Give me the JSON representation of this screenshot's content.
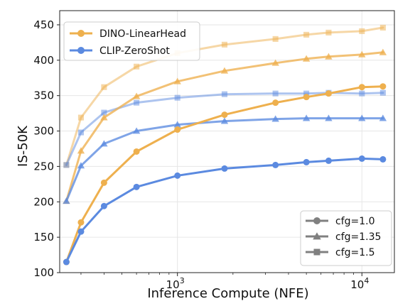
{
  "chart_data": {
    "type": "line",
    "xlabel": "Inference Compute (NFE)",
    "ylabel": "IS-50K",
    "x_scale": "log",
    "xlim": [
      230,
      15000
    ],
    "ylim": [
      100,
      470
    ],
    "x_ticks": [
      {
        "value": 1000,
        "base": "10",
        "exp": "3"
      },
      {
        "value": 10000,
        "base": "10",
        "exp": "4"
      }
    ],
    "y_ticks": [
      100,
      150,
      200,
      250,
      300,
      350,
      400,
      450
    ],
    "grid": true,
    "colors": {
      "dino": "#eeb04e",
      "clip": "#5b8ae0"
    },
    "series": [
      {
        "name": "DINO-LinearHead",
        "color_key": "dino",
        "cfg": "1.0",
        "opacity": 1.0,
        "marker": "circle",
        "x": [
          250,
          300,
          400,
          600,
          1000,
          1800,
          3400,
          5000,
          6600,
          10000,
          13000
        ],
        "y": [
          115,
          171,
          227,
          271,
          302,
          323,
          340,
          348,
          353,
          362,
          363
        ]
      },
      {
        "name": "DINO-LinearHead",
        "color_key": "dino",
        "cfg": "1.35",
        "opacity": 0.78,
        "marker": "triangle",
        "x": [
          250,
          300,
          400,
          600,
          1000,
          1800,
          3400,
          5000,
          6600,
          10000,
          13000
        ],
        "y": [
          201,
          272,
          319,
          349,
          370,
          385,
          396,
          402,
          405,
          408,
          411
        ]
      },
      {
        "name": "DINO-LinearHead",
        "color_key": "dino",
        "cfg": "1.5",
        "opacity": 0.5,
        "marker": "square",
        "x": [
          250,
          300,
          400,
          600,
          1000,
          1800,
          3400,
          5000,
          6600,
          10000,
          13000
        ],
        "y": [
          252,
          319,
          362,
          391,
          410,
          422,
          430,
          436,
          439,
          441,
          446
        ]
      },
      {
        "name": "CLIP-ZeroShot",
        "color_key": "clip",
        "cfg": "1.0",
        "opacity": 1.0,
        "marker": "circle",
        "x": [
          250,
          300,
          400,
          600,
          1000,
          1800,
          3400,
          5000,
          6600,
          10000,
          13000
        ],
        "y": [
          115,
          158,
          194,
          221,
          237,
          247,
          252,
          256,
          258,
          261,
          260
        ]
      },
      {
        "name": "CLIP-ZeroShot",
        "color_key": "clip",
        "cfg": "1.35",
        "opacity": 0.78,
        "marker": "triangle",
        "x": [
          250,
          300,
          400,
          600,
          1000,
          1800,
          3400,
          5000,
          6600,
          10000,
          13000
        ],
        "y": [
          201,
          251,
          282,
          300,
          309,
          314,
          317,
          318,
          318,
          318,
          318
        ]
      },
      {
        "name": "CLIP-ZeroShot",
        "color_key": "clip",
        "cfg": "1.5",
        "opacity": 0.5,
        "marker": "square",
        "x": [
          250,
          300,
          400,
          600,
          1000,
          1800,
          3400,
          5000,
          6600,
          10000,
          13000
        ],
        "y": [
          252,
          298,
          326,
          340,
          347,
          352,
          353,
          353,
          354,
          353,
          354
        ]
      }
    ],
    "legend_model": {
      "placement": "top-left",
      "entries": [
        {
          "label": "DINO-LinearHead",
          "color_key": "dino"
        },
        {
          "label": "CLIP-ZeroShot",
          "color_key": "clip"
        }
      ]
    },
    "legend_cfg": {
      "placement": "bottom-right",
      "entries": [
        {
          "label": "cfg=1.0",
          "marker": "circle"
        },
        {
          "label": "cfg=1.35",
          "marker": "triangle"
        },
        {
          "label": "cfg=1.5",
          "marker": "square"
        }
      ]
    }
  }
}
